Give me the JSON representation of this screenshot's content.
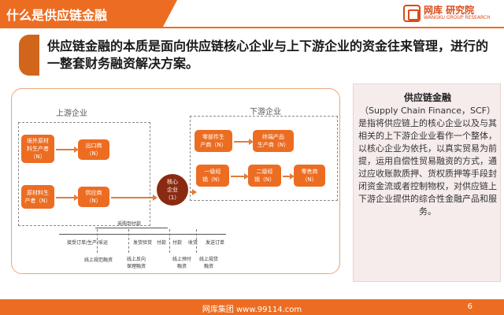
{
  "header": {
    "title": "什么是供应链金融",
    "logo_cn": "网库 研究院",
    "logo_en": "WANGKU GROUP RESEARCH"
  },
  "headline": "供应链金融的本质是面向供应链核心企业与上下游企业的资金往来管理，进行的一整套财务融资解决方案。",
  "diagram": {
    "upstream_label": "上游企业",
    "downstream_label": "下游企业",
    "nodes": {
      "overseas_supplier": [
        "境外原材",
        "料生产者",
        "（N）"
      ],
      "exporter": [
        "出口商",
        "（N）"
      ],
      "raw_producer": [
        "原材料生",
        "产者（N）"
      ],
      "supplier": [
        "供应商",
        "（N）"
      ],
      "core": [
        "核心",
        "企业",
        "（1）"
      ],
      "parts_producer": [
        "零部件生",
        "产商（N）"
      ],
      "terminal_producer": [
        "终端产品",
        "生产商（N）"
      ],
      "dist1": [
        "一级经",
        "销（N）"
      ],
      "dist2": [
        "二级经",
        "销（N）"
      ],
      "retailer": [
        "零售商",
        "（N）"
      ]
    },
    "flow": {
      "procurement": "采购到付款",
      "receive_order": "接受订单/生产/采运",
      "ship": "发货验货",
      "pay1": "付款",
      "pay2": "付款",
      "receive_goods": "收货",
      "issue_order": "发送订单"
    },
    "finance": {
      "online_pledge": "线上规范融资",
      "online_reverse": [
        "线上反向",
        "保理融资"
      ],
      "online_advance": [
        "线上预付",
        "融资"
      ],
      "online_pledge_goods": [
        "线上规货",
        "融资"
      ]
    }
  },
  "sidebar": {
    "title": "供应链金融",
    "body": "（Supply Chain Finance，SCF）是指将供应链上的核心企业以及与其相关的上下游企业业看作一个整体，以核心企业为依托，以真实贸易为前提，运用自偿性贸易融资的方式，通过应收账款质押、货权质押等手段封闭资金流或者控制物权，对供应链上下游企业提供的综合性金融产品和服务。"
  },
  "footer": {
    "text": "网库集团 www.99114.com",
    "page": "6"
  },
  "colors": {
    "accent": "#ec6d22",
    "core": "#8b2a12",
    "sidebar_bg": "#f6ecec"
  }
}
